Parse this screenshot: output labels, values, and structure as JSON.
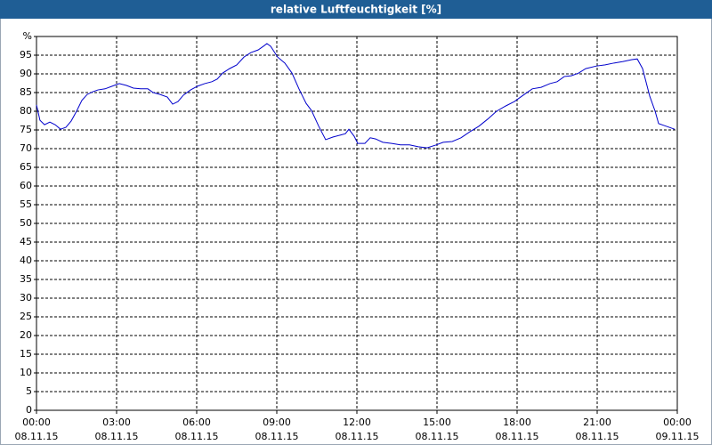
{
  "chart_data": {
    "type": "line",
    "title": "relative Luftfeuchtigkeit [%]",
    "color": "#0000cc",
    "grid": true,
    "xlim": [
      0,
      24
    ],
    "ylim": [
      0,
      100
    ],
    "xticks": [
      {
        "value": 0,
        "label": "00:00",
        "date": "08.11.15"
      },
      {
        "value": 3,
        "label": "03:00",
        "date": "08.11.15"
      },
      {
        "value": 6,
        "label": "06:00",
        "date": "08.11.15"
      },
      {
        "value": 9,
        "label": "09:00",
        "date": "08.11.15"
      },
      {
        "value": 12,
        "label": "12:00",
        "date": "08.11.15"
      },
      {
        "value": 15,
        "label": "15:00",
        "date": "08.11.15"
      },
      {
        "value": 18,
        "label": "18:00",
        "date": "08.11.15"
      },
      {
        "value": 21,
        "label": "21:00",
        "date": "08.11.15"
      },
      {
        "value": 24,
        "label": "00:00",
        "date": "09.11.15"
      }
    ],
    "yticks": [
      0,
      5,
      10,
      15,
      20,
      25,
      30,
      35,
      40,
      45,
      50,
      55,
      60,
      65,
      70,
      75,
      80,
      85,
      90,
      95,
      {
        "value": 100,
        "label": "%"
      }
    ],
    "x": [
      0,
      0.13,
      0.3,
      0.5,
      0.7,
      0.9,
      1.1,
      1.3,
      1.5,
      1.7,
      1.9,
      2.1,
      2.3,
      2.57,
      2.83,
      3.1,
      3.37,
      3.63,
      3.9,
      4.17,
      4.37,
      4.63,
      4.9,
      5.1,
      5.3,
      5.5,
      5.77,
      6.03,
      6.3,
      6.57,
      6.77,
      6.97,
      7.23,
      7.5,
      7.77,
      8.03,
      8.3,
      8.5,
      8.63,
      8.77,
      9.03,
      9.3,
      9.57,
      9.83,
      10.1,
      10.3,
      10.57,
      10.83,
      11.1,
      11.37,
      11.57,
      11.7,
      11.9,
      12.03,
      12.3,
      12.5,
      12.7,
      12.97,
      13.3,
      13.63,
      13.97,
      14.3,
      14.63,
      14.97,
      15.23,
      15.57,
      15.9,
      16.23,
      16.57,
      16.9,
      17.23,
      17.57,
      17.9,
      18.23,
      18.57,
      18.9,
      19.23,
      19.5,
      19.77,
      20.03,
      20.3,
      20.57,
      20.97,
      21.3,
      21.63,
      21.97,
      22.3,
      22.5,
      22.7,
      22.97,
      23.17,
      23.3,
      23.5,
      23.7,
      23.9
    ],
    "values": [
      81.7,
      77.6,
      76.4,
      77.1,
      76.4,
      75.2,
      75.7,
      77.4,
      80,
      82.9,
      84.5,
      85.2,
      85.7,
      86,
      86.7,
      87.4,
      86.9,
      86.2,
      86,
      86,
      85,
      84.5,
      83.8,
      81.9,
      82.6,
      84.3,
      85.7,
      86.7,
      87.4,
      87.9,
      88.6,
      90.2,
      91.4,
      92.4,
      94.5,
      95.7,
      96.4,
      97.4,
      98.1,
      97.4,
      94.5,
      92.9,
      90.2,
      86,
      82.1,
      80.2,
      76,
      72.4,
      73.1,
      73.6,
      74,
      75.2,
      73.3,
      71.4,
      71.4,
      72.9,
      72.6,
      71.7,
      71.4,
      71,
      71,
      70.5,
      70.2,
      71,
      71.7,
      71.9,
      72.9,
      74.5,
      76,
      77.9,
      80,
      81.4,
      82.6,
      84.3,
      86,
      86.4,
      87.4,
      87.9,
      89.3,
      89.5,
      90.2,
      91.4,
      92.1,
      92.4,
      92.9,
      93.3,
      93.8,
      94,
      91.4,
      84,
      80,
      76.7,
      76.2,
      75.7,
      75.2
    ]
  }
}
